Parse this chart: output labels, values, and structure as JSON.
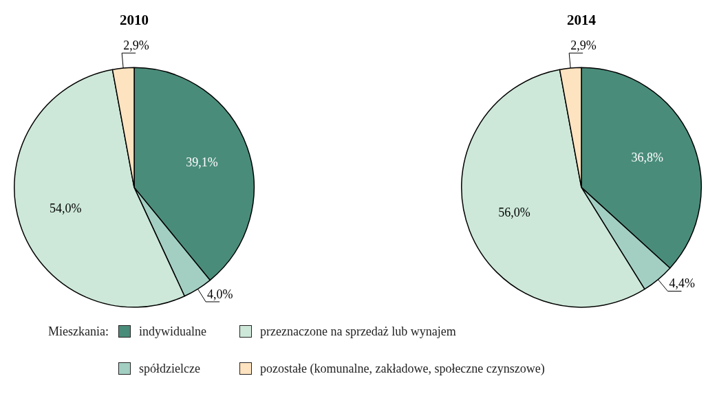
{
  "chart_data": [
    {
      "type": "pie",
      "title": "2010",
      "categories": [
        "indywidualne",
        "spółdzielcze",
        "przeznaczone na sprzedaż lub wynajem",
        "pozostałe (komunalne, zakładowe, społeczne czynszowe)"
      ],
      "values": [
        39.1,
        4.0,
        54.0,
        2.9
      ],
      "value_labels": [
        "39,1%",
        "4,0%",
        "54,0%",
        "2,9%"
      ],
      "colors": [
        "#4a8c7a",
        "#a3cfc3",
        "#cde8d9",
        "#fde3c0"
      ],
      "legend": "bottom",
      "legend_title": "Mieszkania:"
    },
    {
      "type": "pie",
      "title": "2014",
      "categories": [
        null,
        null,
        null,
        null
      ],
      "values": [
        36.8,
        4.4,
        56.0,
        2.9
      ],
      "value_labels": [
        "36,8%",
        "4,4%",
        "56,0%",
        "2,9%"
      ],
      "colors": [
        "#4a8c7a",
        "#a3cfc3",
        "#cde8d9",
        "#fde3c0"
      ]
    }
  ]
}
